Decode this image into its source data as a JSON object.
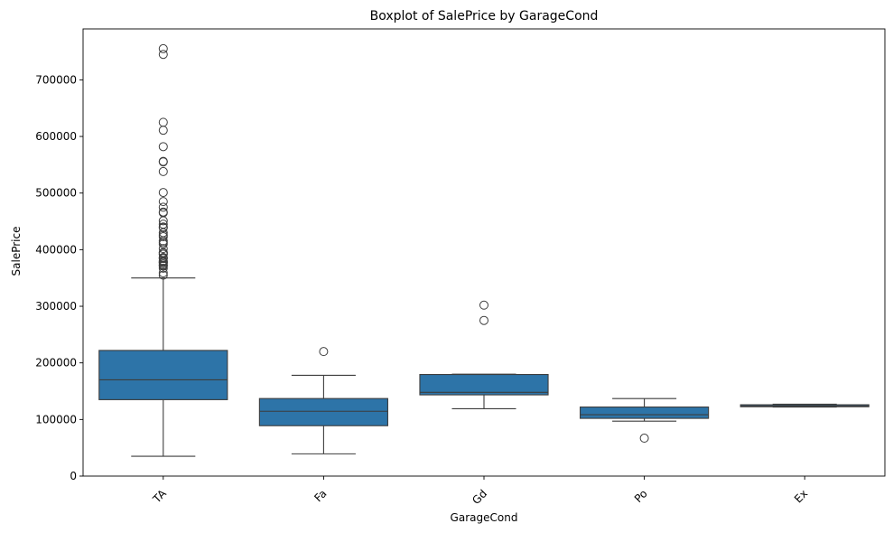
{
  "chart_data": {
    "type": "boxplot",
    "title": "Boxplot of SalePrice by GarageCond",
    "xlabel": "GarageCond",
    "ylabel": "SalePrice",
    "ylim": [
      0,
      790000
    ],
    "yticks": [
      0,
      100000,
      200000,
      300000,
      400000,
      500000,
      600000,
      700000
    ],
    "ytick_labels": [
      "0",
      "100000",
      "200000",
      "300000",
      "400000",
      "500000",
      "600000",
      "700000"
    ],
    "grid": false,
    "box_color": "#2d74a8",
    "line_color": "#3d3d3d",
    "categories": [
      "TA",
      "Fa",
      "Gd",
      "Po",
      "Ex"
    ],
    "boxes": [
      {
        "category": "TA",
        "whisker_low": 35000,
        "q1": 135000,
        "median": 170000,
        "q3": 222000,
        "whisker_high": 350000,
        "outliers": [
          755000,
          745000,
          625000,
          611000,
          582000,
          556000,
          555000,
          538000,
          501000,
          485000,
          475000,
          466500,
          465000,
          451000,
          445000,
          440000,
          438780,
          430000,
          426000,
          423000,
          415298,
          412500,
          410000,
          402000,
          395000,
          394617,
          392500,
          392000,
          386250,
          385000,
          384500,
          380000,
          378500,
          377500,
          377426,
          375000,
          372500,
          372402,
          370878,
          367294,
          359100,
          355000
        ]
      },
      {
        "category": "Fa",
        "whisker_low": 39300,
        "q1": 89000,
        "median": 114500,
        "q3": 137000,
        "whisker_high": 178000,
        "outliers": [
          220000
        ]
      },
      {
        "category": "Gd",
        "whisker_low": 119000,
        "q1": 143500,
        "median": 148000,
        "q3": 179500,
        "whisker_high": 180000,
        "outliers": [
          302000,
          275000
        ]
      },
      {
        "category": "Po",
        "whisker_low": 97000,
        "q1": 102000,
        "median": 108500,
        "q3": 122000,
        "whisker_high": 137000,
        "outliers": [
          67000
        ]
      },
      {
        "category": "Ex",
        "whisker_low": 122000,
        "q1": 122500,
        "median": 124000,
        "q3": 126000,
        "whisker_high": 127000,
        "outliers": []
      }
    ]
  }
}
